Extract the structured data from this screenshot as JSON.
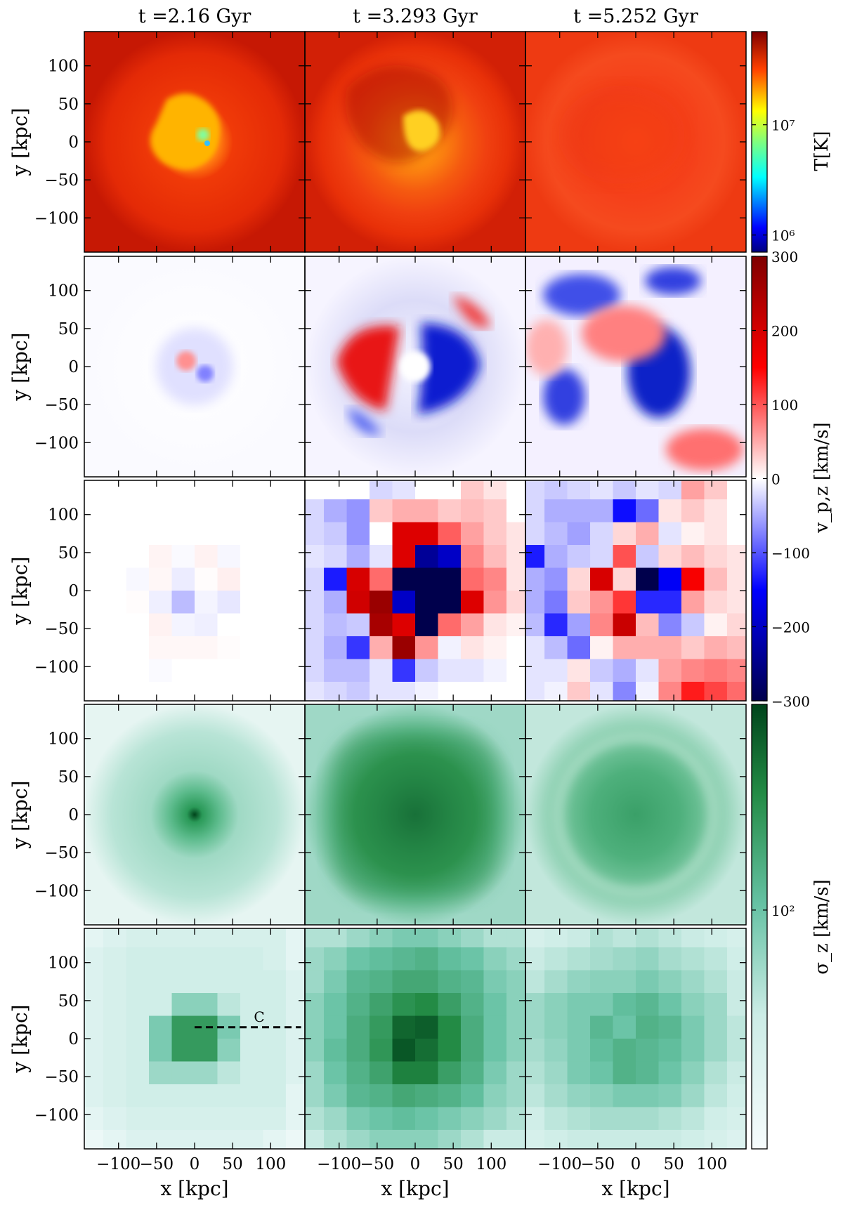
{
  "chart_data": {
    "type": "heatmap",
    "figure": "multi-panel simulation maps (3 columns x 5 rows)",
    "columns": [
      "t =2.16 Gyr",
      "t =3.293 Gyr",
      "t =5.252 Gyr"
    ],
    "xlabel": "x [kpc]",
    "ylabel": "y [kpc]",
    "xlim": [
      -145,
      145
    ],
    "ylim": [
      -145,
      145
    ],
    "x_ticks": [
      -100,
      -50,
      0,
      50,
      100
    ],
    "x_tick_labels": [
      "−100",
      "−50",
      "0",
      "50",
      "100"
    ],
    "y_ticks": [
      100,
      50,
      0,
      -50,
      -100
    ],
    "y_tick_labels": [
      "100",
      "50",
      "0",
      "−50",
      "−100"
    ],
    "colorbars": [
      {
        "label": "T[K]",
        "scale": "log",
        "range": [
          700000,
          70000000
        ],
        "ticks": [
          1000000,
          10000000
        ],
        "tick_labels": [
          "10⁶",
          "10⁷"
        ],
        "colormap": "jet",
        "rows": [
          0
        ]
      },
      {
        "label": "v_p,z [km/s]",
        "scale": "linear",
        "range": [
          -300,
          300
        ],
        "ticks": [
          300,
          200,
          100,
          0,
          -100,
          -200,
          -300
        ],
        "tick_labels": [
          "300",
          "200",
          "100",
          "0",
          "−100",
          "−200",
          "−300"
        ],
        "colormap": "seismic",
        "rows": [
          1,
          2
        ]
      },
      {
        "label": "σ_z [km/s]",
        "scale": "log",
        "range": [
          20,
          400
        ],
        "ticks": [
          100
        ],
        "tick_labels": [
          "10²"
        ],
        "colormap": "greens",
        "rows": [
          3,
          4
        ]
      }
    ],
    "annotation": {
      "text": "C",
      "panel": "row 5, column 1",
      "line_from": [
        0,
        15
      ],
      "line_to": [
        140,
        15
      ],
      "style": "dashed"
    },
    "binned_vz_grid_kpc": {
      "bin_size": 30,
      "x_centers": [
        -135,
        -105,
        -75,
        -45,
        -15,
        15,
        45,
        75,
        105,
        135
      ]
    },
    "binned_vz_t2_16": [
      [
        0,
        0,
        0,
        0,
        0,
        0,
        0,
        0,
        0,
        0
      ],
      [
        0,
        0,
        0,
        0,
        0,
        0,
        0,
        0,
        0,
        0
      ],
      [
        0,
        0,
        0,
        0,
        0,
        0,
        0,
        0,
        0,
        0
      ],
      [
        0,
        0,
        0,
        8,
        -4,
        10,
        -6,
        0,
        0,
        0
      ],
      [
        0,
        0,
        -5,
        6,
        -14,
        2,
        12,
        0,
        0,
        0
      ],
      [
        0,
        0,
        2,
        -12,
        -50,
        -8,
        -18,
        0,
        0,
        0
      ],
      [
        0,
        0,
        0,
        10,
        -8,
        -12,
        0,
        0,
        0,
        0
      ],
      [
        0,
        0,
        0,
        6,
        6,
        6,
        2,
        0,
        0,
        0
      ],
      [
        0,
        0,
        0,
        -4,
        0,
        0,
        0,
        0,
        0,
        0
      ],
      [
        0,
        0,
        0,
        0,
        0,
        0,
        0,
        0,
        0,
        0
      ]
    ],
    "binned_vz_t3_293": [
      [
        0,
        0,
        0,
        -30,
        -20,
        0,
        0,
        40,
        20,
        0
      ],
      [
        -30,
        -60,
        -80,
        40,
        60,
        60,
        40,
        50,
        40,
        0
      ],
      [
        -30,
        -40,
        -80,
        0,
        240,
        240,
        120,
        70,
        40,
        20
      ],
      [
        -20,
        -30,
        -60,
        -20,
        240,
        -300,
        -250,
        90,
        50,
        20
      ],
      [
        -30,
        -170,
        250,
        110,
        -380,
        -380,
        -380,
        110,
        90,
        20
      ],
      [
        -30,
        -60,
        260,
        340,
        -250,
        -380,
        -380,
        240,
        80,
        30
      ],
      [
        -30,
        -50,
        -40,
        320,
        240,
        -380,
        110,
        70,
        20,
        10
      ],
      [
        -30,
        -60,
        -150,
        60,
        340,
        80,
        -10,
        20,
        10,
        0
      ],
      [
        -30,
        -50,
        -50,
        -20,
        -150,
        -40,
        -20,
        -20,
        -10,
        0
      ],
      [
        -20,
        -30,
        -40,
        -20,
        -20,
        -10,
        0,
        0,
        0,
        0
      ]
    ],
    "binned_vz_t5_252": [
      [
        -30,
        -40,
        -30,
        -20,
        -40,
        -20,
        -30,
        70,
        40,
        0
      ],
      [
        -30,
        -60,
        -60,
        -60,
        -180,
        -110,
        20,
        40,
        20,
        0
      ],
      [
        -30,
        -50,
        -70,
        -30,
        30,
        60,
        -20,
        10,
        20,
        0
      ],
      [
        -170,
        -60,
        -40,
        -30,
        130,
        -40,
        30,
        50,
        30,
        20
      ],
      [
        -60,
        -80,
        30,
        250,
        30,
        -380,
        -200,
        200,
        50,
        20
      ],
      [
        -60,
        -100,
        40,
        80,
        150,
        -160,
        -160,
        70,
        30,
        20
      ],
      [
        -50,
        -160,
        -70,
        90,
        270,
        50,
        -90,
        -40,
        10,
        30
      ],
      [
        -20,
        -50,
        -110,
        10,
        60,
        60,
        60,
        40,
        60,
        50
      ],
      [
        -20,
        -20,
        20,
        -40,
        -60,
        -20,
        70,
        90,
        100,
        90
      ],
      [
        -20,
        -10,
        40,
        -20,
        -90,
        -10,
        90,
        170,
        140,
        110
      ]
    ],
    "binned_sigma_t2_16": [
      [
        30,
        35,
        40,
        40,
        40,
        40,
        40,
        40,
        40,
        30
      ],
      [
        35,
        40,
        45,
        45,
        45,
        45,
        45,
        45,
        40,
        30
      ],
      [
        35,
        40,
        45,
        45,
        45,
        45,
        45,
        45,
        45,
        35
      ],
      [
        35,
        40,
        45,
        45,
        80,
        80,
        55,
        45,
        45,
        35
      ],
      [
        35,
        40,
        45,
        90,
        180,
        180,
        90,
        45,
        45,
        35
      ],
      [
        35,
        40,
        45,
        90,
        180,
        180,
        80,
        45,
        45,
        35
      ],
      [
        35,
        40,
        45,
        70,
        70,
        70,
        55,
        45,
        45,
        35
      ],
      [
        35,
        40,
        45,
        45,
        45,
        45,
        45,
        45,
        45,
        30
      ],
      [
        30,
        35,
        40,
        40,
        40,
        40,
        40,
        40,
        40,
        30
      ],
      [
        25,
        30,
        35,
        35,
        35,
        35,
        35,
        35,
        30,
        25
      ]
    ],
    "binned_sigma_t3_293": [
      [
        60,
        60,
        70,
        80,
        90,
        90,
        80,
        70,
        60,
        60
      ],
      [
        70,
        80,
        100,
        110,
        120,
        130,
        110,
        100,
        80,
        70
      ],
      [
        70,
        90,
        120,
        130,
        150,
        150,
        130,
        120,
        90,
        80
      ],
      [
        80,
        100,
        130,
        160,
        200,
        220,
        170,
        130,
        100,
        80
      ],
      [
        80,
        100,
        140,
        180,
        300,
        320,
        220,
        140,
        100,
        80
      ],
      [
        80,
        110,
        140,
        190,
        340,
        280,
        220,
        140,
        100,
        80
      ],
      [
        70,
        100,
        130,
        160,
        240,
        240,
        170,
        130,
        90,
        70
      ],
      [
        70,
        90,
        120,
        130,
        150,
        140,
        130,
        110,
        80,
        70
      ],
      [
        60,
        70,
        90,
        100,
        110,
        100,
        90,
        80,
        70,
        60
      ],
      [
        50,
        60,
        70,
        80,
        80,
        80,
        70,
        60,
        50,
        50
      ]
    ],
    "binned_sigma_t5_252": [
      [
        40,
        45,
        50,
        60,
        55,
        60,
        55,
        50,
        45,
        40
      ],
      [
        50,
        55,
        60,
        65,
        70,
        75,
        65,
        60,
        55,
        45
      ],
      [
        55,
        65,
        75,
        80,
        80,
        90,
        80,
        70,
        60,
        50
      ],
      [
        70,
        80,
        90,
        90,
        110,
        120,
        100,
        80,
        70,
        50
      ],
      [
        70,
        80,
        90,
        120,
        100,
        130,
        120,
        90,
        70,
        55
      ],
      [
        65,
        75,
        90,
        110,
        130,
        120,
        110,
        90,
        70,
        55
      ],
      [
        60,
        70,
        90,
        100,
        130,
        120,
        100,
        80,
        60,
        50
      ],
      [
        55,
        65,
        75,
        80,
        90,
        90,
        85,
        70,
        55,
        45
      ],
      [
        45,
        55,
        60,
        65,
        65,
        65,
        60,
        55,
        45,
        40
      ],
      [
        40,
        45,
        50,
        50,
        50,
        50,
        50,
        45,
        40,
        35
      ]
    ]
  }
}
